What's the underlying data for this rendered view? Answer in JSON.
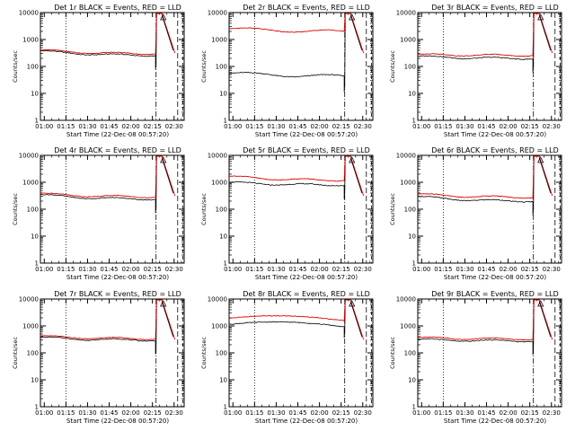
{
  "chart_data": [
    {
      "type": "line",
      "title": "Det 1r BLACK = Events, RED = LLD",
      "xlabel": "Start Time (22-Dec-08 00:57:20)",
      "ylabel": "Counts/sec",
      "ylog": true,
      "ylim": [
        1,
        10000
      ],
      "yticks": [
        "1",
        "10",
        "100",
        "1000",
        "10000"
      ],
      "xticks": [
        "01:00",
        "01:15",
        "01:30",
        "01:45",
        "02:00",
        "02:15",
        "02:30"
      ],
      "xlim": [
        "00:57:20",
        "02:37:00"
      ],
      "markers": {
        "dotted": "01:15",
        "dashdot": "02:17:30",
        "dashed": "02:32:30",
        "dashed_right": "02:36:00"
      },
      "events_baseline": 380,
      "events_end": 260,
      "lld_baseline": 410,
      "lld_end": 300,
      "pattern": "decay"
    },
    {
      "type": "line",
      "title": "Det 2r BLACK = Events, RED = LLD",
      "xlabel": "Start Time (22-Dec-08 00:57:20)",
      "ylabel": "Counts/sec",
      "ylog": true,
      "ylim": [
        1,
        10000
      ],
      "yticks": [
        "1",
        "10",
        "100",
        "1000",
        "10000"
      ],
      "xticks": [
        "01:00",
        "01:15",
        "01:30",
        "01:45",
        "02:00",
        "02:15",
        "02:30"
      ],
      "xlim": [
        "00:57:20",
        "02:37:00"
      ],
      "markers": {
        "dotted": "01:15",
        "dashdot": "02:17:30",
        "dashed": "02:32:30",
        "dashed_right": "02:36:00"
      },
      "events_baseline": 55,
      "events_end": 38,
      "lld_baseline": 2500,
      "lld_end": 2600,
      "pattern": "wavy"
    },
    {
      "type": "line",
      "title": "Det 3r BLACK = Events, RED = LLD",
      "xlabel": "Start Time (22-Dec-08 00:57:20)",
      "ylabel": "Counts/sec",
      "ylog": true,
      "ylim": [
        1,
        10000
      ],
      "yticks": [
        "1",
        "10",
        "100",
        "1000",
        "10000"
      ],
      "xticks": [
        "01:00",
        "01:15",
        "01:30",
        "01:45",
        "02:00",
        "02:15",
        "02:30"
      ],
      "xlim": [
        "00:57:20",
        "02:37:00"
      ],
      "markers": {
        "dotted": "01:15",
        "dashdot": "02:17:30",
        "dashed": "02:32:30",
        "dashed_right": "02:36:00"
      },
      "events_baseline": 240,
      "events_end": 200,
      "lld_baseline": 280,
      "lld_end": 260,
      "pattern": "decay"
    },
    {
      "type": "line",
      "title": "Det 4r BLACK = Events, RED = LLD",
      "xlabel": "Start Time (22-Dec-08 00:57:20)",
      "ylabel": "Counts/sec",
      "ylog": true,
      "ylim": [
        1,
        10000
      ],
      "yticks": [
        "1",
        "10",
        "100",
        "1000",
        "10000"
      ],
      "xticks": [
        "01:00",
        "01:15",
        "01:30",
        "01:45",
        "02:00",
        "02:15",
        "02:30"
      ],
      "xlim": [
        "00:57:20",
        "02:37:00"
      ],
      "markers": {
        "dotted": "01:15",
        "dashdot": "02:17:30",
        "dashed": "02:32:30",
        "dashed_right": "02:36:00"
      },
      "events_baseline": 350,
      "events_end": 240,
      "lld_baseline": 390,
      "lld_end": 290,
      "pattern": "decay"
    },
    {
      "type": "line",
      "title": "Det 5r BLACK = Events, RED = LLD",
      "xlabel": "Start Time (22-Dec-08 00:57:20)",
      "ylabel": "Counts/sec",
      "ylog": true,
      "ylim": [
        1,
        10000
      ],
      "yticks": [
        "1",
        "10",
        "100",
        "1000",
        "10000"
      ],
      "xticks": [
        "01:00",
        "01:15",
        "01:30",
        "01:45",
        "02:00",
        "02:15",
        "02:30"
      ],
      "xlim": [
        "00:57:20",
        "02:37:00"
      ],
      "markers": {
        "dotted": "01:15",
        "dashdot": "02:17:30",
        "dashed": "02:32:30",
        "dashed_right": "02:36:00"
      },
      "events_baseline": 1000,
      "events_end": 800,
      "lld_baseline": 1700,
      "lld_end": 1200,
      "pattern": "decay"
    },
    {
      "type": "line",
      "title": "Det 6r BLACK = Events, RED = LLD",
      "xlabel": "Start Time (22-Dec-08 00:57:20)",
      "ylabel": "Counts/sec",
      "ylog": true,
      "ylim": [
        1,
        10000
      ],
      "yticks": [
        "1",
        "10",
        "100",
        "1000",
        "10000"
      ],
      "xticks": [
        "01:00",
        "01:15",
        "01:30",
        "01:45",
        "02:00",
        "02:15",
        "02:30"
      ],
      "xlim": [
        "00:57:20",
        "02:37:00"
      ],
      "markers": {
        "dotted": "01:15",
        "dashdot": "02:17:30",
        "dashed": "02:32:30",
        "dashed_right": "02:36:00"
      },
      "events_baseline": 300,
      "events_end": 200,
      "lld_baseline": 370,
      "lld_end": 280,
      "pattern": "decay"
    },
    {
      "type": "line",
      "title": "Det 7r BLACK = Events, RED = LLD",
      "xlabel": "Start Time (22-Dec-08 00:57:20)",
      "ylabel": "Counts/sec",
      "ylog": true,
      "ylim": [
        1,
        10000
      ],
      "yticks": [
        "1",
        "10",
        "100",
        "1000",
        "10000"
      ],
      "xticks": [
        "01:00",
        "01:15",
        "01:30",
        "01:45",
        "02:00",
        "02:15",
        "02:30"
      ],
      "xlim": [
        "00:57:20",
        "02:37:00"
      ],
      "markers": {
        "dotted": "01:15",
        "dashdot": "02:17:30",
        "dashed": "02:32:30",
        "dashed_right": "02:36:00"
      },
      "events_baseline": 380,
      "events_end": 300,
      "lld_baseline": 420,
      "lld_end": 340,
      "pattern": "decay"
    },
    {
      "type": "line",
      "title": "Det 8r BLACK = Events, RED = LLD",
      "xlabel": "Start Time (22-Dec-08 00:57:20)",
      "ylabel": "Counts/sec",
      "ylog": true,
      "ylim": [
        1,
        10000
      ],
      "yticks": [
        "1",
        "10",
        "100",
        "1000",
        "10000"
      ],
      "xticks": [
        "01:00",
        "01:15",
        "01:30",
        "01:45",
        "02:00",
        "02:15",
        "02:30"
      ],
      "xlim": [
        "00:57:20",
        "02:37:00"
      ],
      "markers": {
        "dotted": "01:15",
        "dashdot": "02:17:30",
        "dashed": "02:32:30",
        "dashed_right": "02:36:00"
      },
      "events_baseline": 1300,
      "events_end": 1200,
      "lld_baseline": 2200,
      "lld_end": 2000,
      "pattern": "hump"
    },
    {
      "type": "line",
      "title": "Det 9r BLACK = Events, RED = LLD",
      "xlabel": "Start Time (22-Dec-08 00:57:20)",
      "ylabel": "Counts/sec",
      "ylog": true,
      "ylim": [
        1,
        10000
      ],
      "yticks": [
        "1",
        "10",
        "100",
        "1000",
        "10000"
      ],
      "xticks": [
        "01:00",
        "01:15",
        "01:30",
        "01:45",
        "02:00",
        "02:15",
        "02:30"
      ],
      "xlim": [
        "00:57:20",
        "02:37:00"
      ],
      "markers": {
        "dotted": "01:15",
        "dashdot": "02:17:30",
        "dashed": "02:32:30",
        "dashed_right": "02:36:00"
      },
      "events_baseline": 320,
      "events_end": 280,
      "lld_baseline": 370,
      "lld_end": 330,
      "pattern": "decay"
    }
  ],
  "colors": {
    "events": "#000000",
    "lld": "#dd0000",
    "axis": "#000000",
    "background": "#ffffff"
  }
}
